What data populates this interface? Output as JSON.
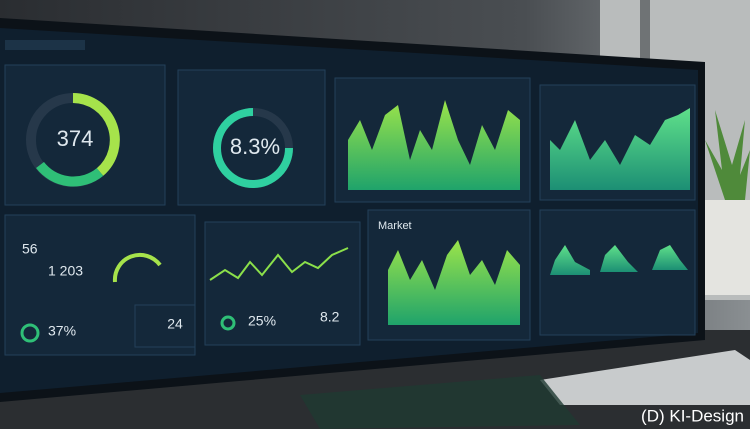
{
  "watermark": "(D) KI-Design",
  "panels": [
    {
      "value": "374"
    },
    {
      "value": "8.3%"
    },
    {
      "title": "Market"
    },
    {
      "value": "56"
    },
    {
      "value": "1 203"
    },
    {
      "value": "37%"
    },
    {
      "value": "25%"
    },
    {
      "value": "8.2"
    },
    {
      "value": "24"
    }
  ]
}
